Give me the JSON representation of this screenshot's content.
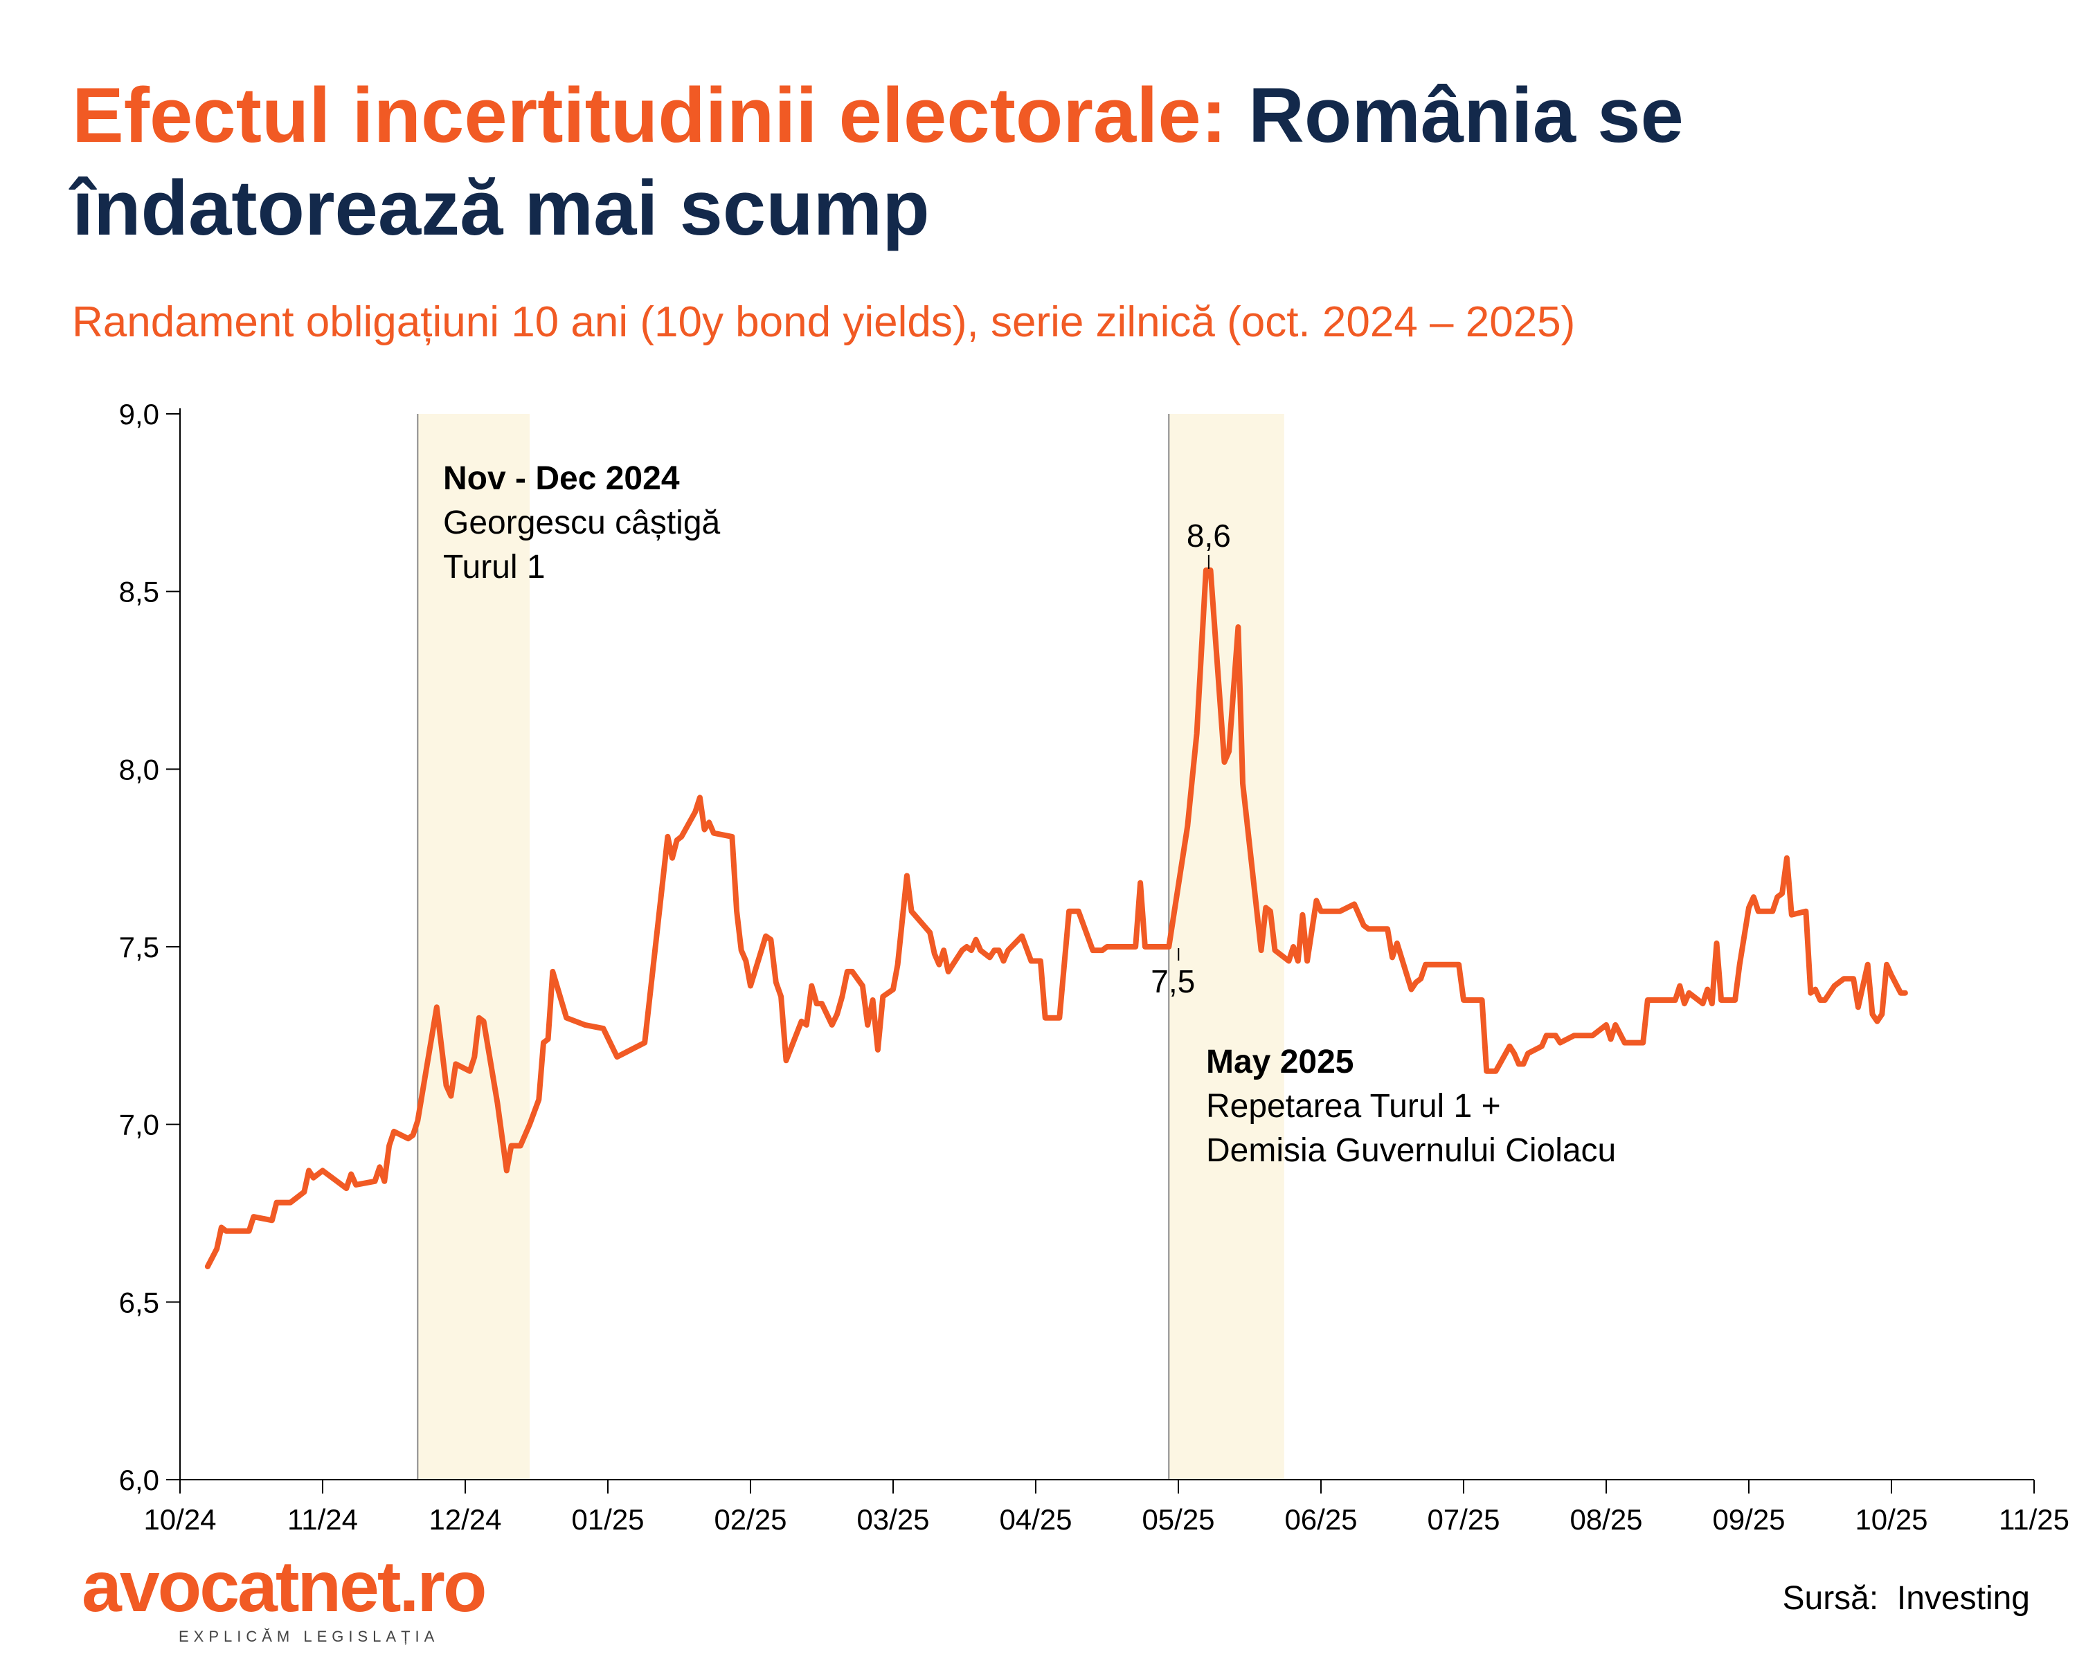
{
  "title": {
    "accent": "Efectul incertitudinii electorale:",
    "main": "România se îndatorează mai scump"
  },
  "subtitle": "Randament obligațiuni 10 ani (10y bond yields), serie zilnică (oct. 2024 – 2025)",
  "annotations": {
    "first": {
      "heading": "Nov -  Dec 2024",
      "line1": "Georgescu câștigă",
      "line2": "Turul 1"
    },
    "second": {
      "heading": "May 2025",
      "line1": "Repetarea Turul 1 +",
      "line2": "Demisia Guvernului Ciolacu"
    },
    "peak_label": "8,6",
    "start_label": "7,5"
  },
  "logo": {
    "name": "avocatnet.ro",
    "tagline": "EXPLICĂM LEGISLAȚIA"
  },
  "source": "Sursă:  Investing",
  "colors": {
    "accent": "#F15A24",
    "navy": "#13294B",
    "band": "#FCF6E3"
  },
  "chart_data": {
    "type": "line",
    "title": "Randament obligațiuni 10 ani (10y bond yields), serie zilnică (oct. 2024 – 2025)",
    "xlabel": "",
    "ylabel": "",
    "ylim": [
      6.0,
      9.0
    ],
    "yticks": [
      6.0,
      6.5,
      7.0,
      7.5,
      8.0,
      8.5,
      9.0
    ],
    "ytick_labels": [
      "6,0",
      "6,5",
      "7,0",
      "7,5",
      "8,0",
      "8,5",
      "9,0"
    ],
    "xlim": [
      "2024-10-01",
      "2025-11-01"
    ],
    "xtick_labels": [
      "10/24",
      "11/24",
      "12/24",
      "01/25",
      "02/25",
      "03/25",
      "04/25",
      "05/25",
      "06/25",
      "07/25",
      "08/25",
      "09/25",
      "10/25",
      "11/25"
    ],
    "grid": false,
    "legend": "none",
    "shaded_periods": [
      {
        "start": "2024-11-21",
        "end": "2024-12-15"
      },
      {
        "start": "2025-04-29",
        "end": "2025-05-24"
      }
    ],
    "labeled_points": [
      {
        "date": "2025-05-07",
        "value": 8.56,
        "label": "8,6"
      },
      {
        "date": "2025-04-29",
        "value": 7.5,
        "label": "7,5"
      }
    ],
    "series": [
      {
        "name": "10y bond yield",
        "points": [
          [
            "2024-10-07",
            6.6
          ],
          [
            "2024-10-09",
            6.65
          ],
          [
            "2024-10-10",
            6.71
          ],
          [
            "2024-10-11",
            6.7
          ],
          [
            "2024-10-16",
            6.7
          ],
          [
            "2024-10-17",
            6.74
          ],
          [
            "2024-10-21",
            6.73
          ],
          [
            "2024-10-22",
            6.78
          ],
          [
            "2024-10-25",
            6.78
          ],
          [
            "2024-10-28",
            6.81
          ],
          [
            "2024-10-29",
            6.87
          ],
          [
            "2024-10-30",
            6.85
          ],
          [
            "2024-11-01",
            6.87
          ],
          [
            "2024-11-04",
            6.84
          ],
          [
            "2024-11-06",
            6.82
          ],
          [
            "2024-11-07",
            6.86
          ],
          [
            "2024-11-08",
            6.83
          ],
          [
            "2024-11-12",
            6.84
          ],
          [
            "2024-11-13",
            6.88
          ],
          [
            "2024-11-14",
            6.84
          ],
          [
            "2024-11-15",
            6.94
          ],
          [
            "2024-11-16",
            6.98
          ],
          [
            "2024-11-19",
            6.96
          ],
          [
            "2024-11-20",
            6.97
          ],
          [
            "2024-11-21",
            7.01
          ],
          [
            "2024-11-25",
            7.33
          ],
          [
            "2024-11-27",
            7.11
          ],
          [
            "2024-11-28",
            7.08
          ],
          [
            "2024-11-29",
            7.17
          ],
          [
            "2024-12-02",
            7.15
          ],
          [
            "2024-12-03",
            7.19
          ],
          [
            "2024-12-04",
            7.3
          ],
          [
            "2024-12-05",
            7.29
          ],
          [
            "2024-12-08",
            7.06
          ],
          [
            "2024-12-10",
            6.87
          ],
          [
            "2024-12-11",
            6.94
          ],
          [
            "2024-12-13",
            6.94
          ],
          [
            "2024-12-15",
            7.0
          ],
          [
            "2024-12-17",
            7.07
          ],
          [
            "2024-12-18",
            7.23
          ],
          [
            "2024-12-19",
            7.24
          ],
          [
            "2024-12-20",
            7.43
          ],
          [
            "2024-12-23",
            7.3
          ],
          [
            "2024-12-27",
            7.28
          ],
          [
            "2024-12-31",
            7.27
          ],
          [
            "2025-01-03",
            7.19
          ],
          [
            "2025-01-09",
            7.23
          ],
          [
            "2025-01-14",
            7.81
          ],
          [
            "2025-01-15",
            7.75
          ],
          [
            "2025-01-16",
            7.8
          ],
          [
            "2025-01-17",
            7.81
          ],
          [
            "2025-01-20",
            7.88
          ],
          [
            "2025-01-21",
            7.92
          ],
          [
            "2025-01-22",
            7.83
          ],
          [
            "2025-01-23",
            7.85
          ],
          [
            "2025-01-24",
            7.82
          ],
          [
            "2025-01-28",
            7.81
          ],
          [
            "2025-01-29",
            7.6
          ],
          [
            "2025-01-30",
            7.49
          ],
          [
            "2025-01-31",
            7.46
          ],
          [
            "2025-02-01",
            7.39
          ],
          [
            "2025-02-04",
            7.53
          ],
          [
            "2025-02-05",
            7.52
          ],
          [
            "2025-02-06",
            7.4
          ],
          [
            "2025-02-07",
            7.36
          ],
          [
            "2025-02-08",
            7.18
          ],
          [
            "2025-02-11",
            7.29
          ],
          [
            "2025-02-12",
            7.28
          ],
          [
            "2025-02-13",
            7.39
          ],
          [
            "2025-02-14",
            7.34
          ],
          [
            "2025-02-15",
            7.34
          ],
          [
            "2025-02-17",
            7.28
          ],
          [
            "2025-02-18",
            7.31
          ],
          [
            "2025-02-19",
            7.36
          ],
          [
            "2025-02-20",
            7.43
          ],
          [
            "2025-02-21",
            7.43
          ],
          [
            "2025-02-23",
            7.39
          ],
          [
            "2025-02-24",
            7.28
          ],
          [
            "2025-02-25",
            7.35
          ],
          [
            "2025-02-26",
            7.21
          ],
          [
            "2025-02-27",
            7.36
          ],
          [
            "2025-03-01",
            7.38
          ],
          [
            "2025-03-02",
            7.45
          ],
          [
            "2025-03-04",
            7.7
          ],
          [
            "2025-03-05",
            7.6
          ],
          [
            "2025-03-09",
            7.54
          ],
          [
            "2025-03-10",
            7.48
          ],
          [
            "2025-03-11",
            7.45
          ],
          [
            "2025-03-12",
            7.49
          ],
          [
            "2025-03-13",
            7.43
          ],
          [
            "2025-03-16",
            7.49
          ],
          [
            "2025-03-17",
            7.5
          ],
          [
            "2025-03-18",
            7.49
          ],
          [
            "2025-03-19",
            7.52
          ],
          [
            "2025-03-20",
            7.49
          ],
          [
            "2025-03-22",
            7.47
          ],
          [
            "2025-03-23",
            7.49
          ],
          [
            "2025-03-24",
            7.49
          ],
          [
            "2025-03-25",
            7.46
          ],
          [
            "2025-03-26",
            7.49
          ],
          [
            "2025-03-29",
            7.53
          ],
          [
            "2025-03-31",
            7.46
          ],
          [
            "2025-04-02",
            7.46
          ],
          [
            "2025-04-03",
            7.3
          ],
          [
            "2025-04-06",
            7.3
          ],
          [
            "2025-04-08",
            7.6
          ],
          [
            "2025-04-10",
            7.6
          ],
          [
            "2025-04-13",
            7.49
          ],
          [
            "2025-04-15",
            7.49
          ],
          [
            "2025-04-16",
            7.5
          ],
          [
            "2025-04-22",
            7.5
          ],
          [
            "2025-04-23",
            7.68
          ],
          [
            "2025-04-24",
            7.5
          ],
          [
            "2025-04-29",
            7.5
          ],
          [
            "2025-05-03",
            7.84
          ],
          [
            "2025-05-04",
            7.97
          ],
          [
            "2025-05-05",
            8.1
          ],
          [
            "2025-05-07",
            8.56
          ],
          [
            "2025-05-08",
            8.56
          ],
          [
            "2025-05-10",
            8.2
          ],
          [
            "2025-05-11",
            8.02
          ],
          [
            "2025-05-12",
            8.05
          ],
          [
            "2025-05-14",
            8.4
          ],
          [
            "2025-05-15",
            7.96
          ],
          [
            "2025-05-19",
            7.49
          ],
          [
            "2025-05-20",
            7.61
          ],
          [
            "2025-05-21",
            7.6
          ],
          [
            "2025-05-22",
            7.49
          ],
          [
            "2025-05-25",
            7.46
          ],
          [
            "2025-05-26",
            7.5
          ],
          [
            "2025-05-27",
            7.46
          ],
          [
            "2025-05-28",
            7.59
          ],
          [
            "2025-05-29",
            7.46
          ],
          [
            "2025-05-31",
            7.63
          ],
          [
            "2025-06-01",
            7.6
          ],
          [
            "2025-06-05",
            7.6
          ],
          [
            "2025-06-08",
            7.62
          ],
          [
            "2025-06-10",
            7.56
          ],
          [
            "2025-06-11",
            7.55
          ],
          [
            "2025-06-15",
            7.55
          ],
          [
            "2025-06-16",
            7.47
          ],
          [
            "2025-06-17",
            7.51
          ],
          [
            "2025-06-20",
            7.38
          ],
          [
            "2025-06-21",
            7.4
          ],
          [
            "2025-06-22",
            7.41
          ],
          [
            "2025-06-23",
            7.45
          ],
          [
            "2025-06-30",
            7.45
          ],
          [
            "2025-07-01",
            7.35
          ],
          [
            "2025-07-05",
            7.35
          ],
          [
            "2025-07-06",
            7.15
          ],
          [
            "2025-07-08",
            7.15
          ],
          [
            "2025-07-11",
            7.22
          ],
          [
            "2025-07-12",
            7.2
          ],
          [
            "2025-07-13",
            7.17
          ],
          [
            "2025-07-14",
            7.17
          ],
          [
            "2025-07-15",
            7.2
          ],
          [
            "2025-07-18",
            7.22
          ],
          [
            "2025-07-19",
            7.25
          ],
          [
            "2025-07-21",
            7.25
          ],
          [
            "2025-07-22",
            7.23
          ],
          [
            "2025-07-25",
            7.25
          ],
          [
            "2025-07-29",
            7.25
          ],
          [
            "2025-08-01",
            7.28
          ],
          [
            "2025-08-02",
            7.24
          ],
          [
            "2025-08-03",
            7.28
          ],
          [
            "2025-08-05",
            7.23
          ],
          [
            "2025-08-09",
            7.23
          ],
          [
            "2025-08-10",
            7.35
          ],
          [
            "2025-08-16",
            7.35
          ],
          [
            "2025-08-17",
            7.39
          ],
          [
            "2025-08-18",
            7.34
          ],
          [
            "2025-08-19",
            7.37
          ],
          [
            "2025-08-22",
            7.34
          ],
          [
            "2025-08-23",
            7.38
          ],
          [
            "2025-08-24",
            7.34
          ],
          [
            "2025-08-25",
            7.51
          ],
          [
            "2025-08-26",
            7.35
          ],
          [
            "2025-08-29",
            7.35
          ],
          [
            "2025-08-30",
            7.45
          ],
          [
            "2025-09-01",
            7.61
          ],
          [
            "2025-09-02",
            7.64
          ],
          [
            "2025-09-03",
            7.6
          ],
          [
            "2025-09-06",
            7.6
          ],
          [
            "2025-09-07",
            7.64
          ],
          [
            "2025-09-08",
            7.65
          ],
          [
            "2025-09-09",
            7.75
          ],
          [
            "2025-09-10",
            7.59
          ],
          [
            "2025-09-13",
            7.6
          ],
          [
            "2025-09-14",
            7.37
          ],
          [
            "2025-09-15",
            7.38
          ],
          [
            "2025-09-16",
            7.35
          ],
          [
            "2025-09-17",
            7.35
          ],
          [
            "2025-09-19",
            7.39
          ],
          [
            "2025-09-21",
            7.41
          ],
          [
            "2025-09-23",
            7.41
          ],
          [
            "2025-09-24",
            7.33
          ],
          [
            "2025-09-26",
            7.45
          ],
          [
            "2025-09-27",
            7.31
          ],
          [
            "2025-09-28",
            7.29
          ],
          [
            "2025-09-29",
            7.31
          ],
          [
            "2025-09-30",
            7.45
          ],
          [
            "2025-10-01",
            7.42
          ],
          [
            "2025-10-03",
            7.37
          ],
          [
            "2025-10-04",
            7.37
          ]
        ]
      }
    ]
  }
}
